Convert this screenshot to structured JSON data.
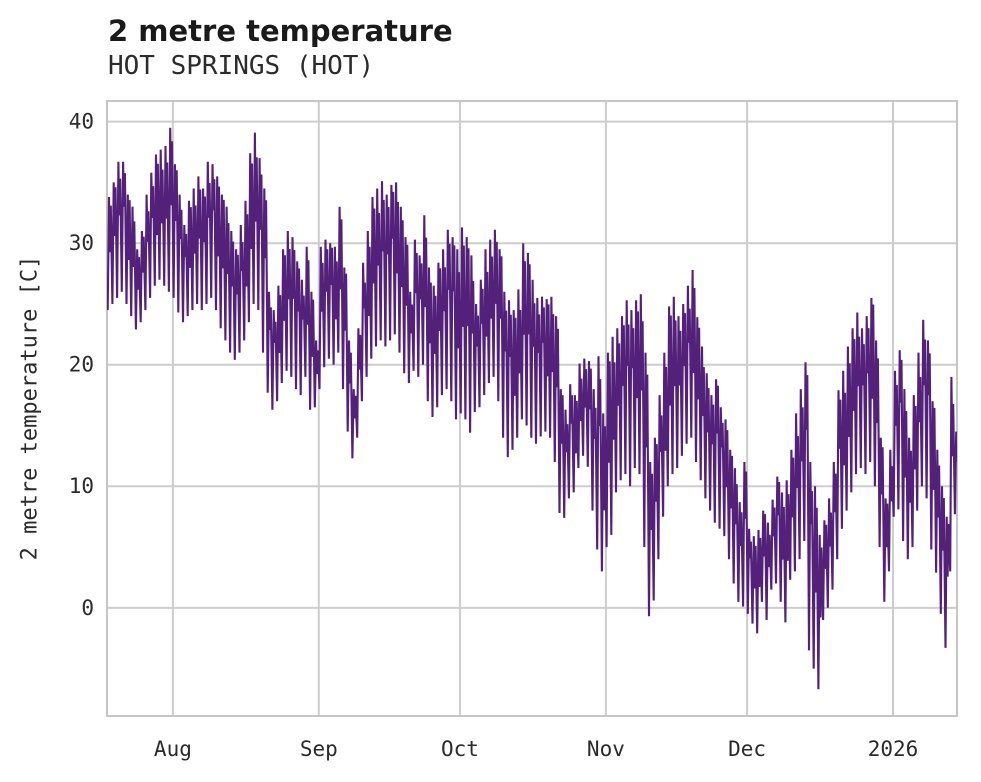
{
  "chart_data": {
    "type": "line",
    "title": "2 metre temperature",
    "subtitle": "HOT SPRINGS (HOT)",
    "ylabel": "2 metre temperature [C]",
    "xlabel": "",
    "line_color": "#53217a",
    "grid_color": "#cdcdcd",
    "frame_color": "#c6c6c6",
    "legend": "none",
    "grid": "on",
    "y_ticks": [
      0,
      10,
      20,
      30,
      40
    ],
    "y_domain": [
      -8.9,
      41.7
    ],
    "x_domain": [
      0,
      180.6
    ],
    "x_ticks": [
      {
        "label": "Aug",
        "day": 14
      },
      {
        "label": "Sep",
        "day": 45
      },
      {
        "label": "Oct",
        "day": 75
      },
      {
        "label": "Nov",
        "day": 106
      },
      {
        "label": "Dec",
        "day": 136
      },
      {
        "label": "2026",
        "day": 167
      }
    ],
    "series": [
      {
        "name": "2 metre temperature",
        "unit": "C",
        "sampling": "daily min/max envelope of hourly curve, day 0 = left edge of plot",
        "daily_max": [
          33.8,
          35,
          36.7,
          36.7,
          34,
          33,
          29.5,
          31,
          34,
          35.8,
          37.3,
          37.7,
          38,
          39.5,
          36.5,
          34,
          31.5,
          33.5,
          34.5,
          35.5,
          34.5,
          36.7,
          36.5,
          35.5,
          34,
          33,
          31,
          29.5,
          31.5,
          33.5,
          37.4,
          39.1,
          37,
          34.5,
          26,
          24.5,
          26.5,
          29.5,
          31,
          30.5,
          28.5,
          27,
          29.7,
          26,
          22,
          29.7,
          30.3,
          30,
          29.7,
          33,
          28,
          22,
          18,
          23,
          28.4,
          31,
          33.8,
          34.5,
          35.1,
          34,
          34.8,
          35,
          33,
          30.5,
          26,
          30.3,
          29,
          32.3,
          28,
          26.5,
          28.4,
          29.5,
          31.1,
          30.5,
          29.5,
          31.3,
          30.5,
          29,
          25,
          27,
          29.5,
          30.3,
          31.1,
          29.5,
          26,
          25.3,
          24.5,
          26.2,
          30,
          29.2,
          27,
          25.5,
          25.6,
          25.4,
          25.6,
          24,
          18,
          16.3,
          18.4,
          17.5,
          20.1,
          20.5,
          20.3,
          18,
          20.7,
          16,
          21,
          22.3,
          23,
          24,
          25.3,
          24.5,
          25.3,
          25.8,
          21,
          12,
          14,
          17.5,
          21,
          24.8,
          25.6,
          24,
          25,
          26.5,
          27.8,
          23.9,
          21.5,
          19.3,
          17.5,
          18.8,
          16.5,
          15.5,
          13,
          11.5,
          8.7,
          12,
          6.5,
          5.9,
          6.4,
          8,
          7,
          8.9,
          10.8,
          9.5,
          10.5,
          13,
          16,
          18,
          20.2,
          12,
          10,
          6,
          7.2,
          9,
          12,
          17.9,
          19.5,
          21.5,
          23,
          24.3,
          23,
          24,
          25.5,
          22,
          14,
          9,
          13,
          19.5,
          21.2,
          18,
          14,
          17.5,
          21,
          23.7,
          22,
          17,
          13,
          10,
          7.5,
          19,
          14.5
        ],
        "daily_min": [
          24.5,
          25,
          25.5,
          26,
          25,
          24,
          22.9,
          23.5,
          24.5,
          25.5,
          26.5,
          27,
          26.5,
          26,
          25.5,
          24.3,
          23.5,
          24,
          24.5,
          25,
          24.5,
          25,
          25.5,
          24.5,
          23,
          22,
          21,
          20.4,
          21,
          22,
          23.5,
          25,
          24.5,
          21,
          17.7,
          16.3,
          17,
          18.5,
          19.5,
          19,
          18,
          17.5,
          19,
          16.3,
          16.5,
          18,
          19.8,
          20.5,
          20,
          21,
          18,
          14.5,
          12.3,
          14,
          17,
          19,
          20.5,
          21.5,
          22,
          21.5,
          22,
          22.5,
          21,
          19.3,
          18.5,
          19.5,
          19,
          20,
          17,
          15.7,
          16.5,
          17.5,
          18,
          17,
          15.5,
          16,
          15.5,
          14.4,
          16.1,
          16.5,
          17.5,
          18.5,
          19,
          17,
          14,
          12.4,
          13,
          14,
          15.5,
          15,
          14,
          13.5,
          14.1,
          14.5,
          14,
          12,
          7.8,
          7.4,
          9,
          9.5,
          11.5,
          12.5,
          11.6,
          8,
          4.8,
          3,
          5,
          6,
          9.5,
          10.5,
          11,
          10,
          11.5,
          11,
          5,
          -0.7,
          0.6,
          4,
          7.5,
          10,
          11,
          11.5,
          12.5,
          13.5,
          14,
          12,
          10.5,
          9,
          8,
          7,
          6.5,
          5.9,
          4,
          2,
          0.5,
          0.1,
          -0.5,
          -1.3,
          -2.1,
          0.5,
          -1,
          1.5,
          2,
          0.5,
          -1.2,
          2.3,
          3,
          4,
          5.5,
          -3.5,
          -5,
          -6.7,
          -1,
          0,
          1.5,
          4,
          6.5,
          8,
          9.5,
          11,
          11.5,
          11,
          12,
          10,
          5,
          0.5,
          3,
          7.5,
          8.1,
          5.5,
          4,
          5,
          8,
          10,
          9,
          4.8,
          2.9,
          -0.5,
          -3.3,
          3,
          7.7
        ]
      }
    ]
  }
}
